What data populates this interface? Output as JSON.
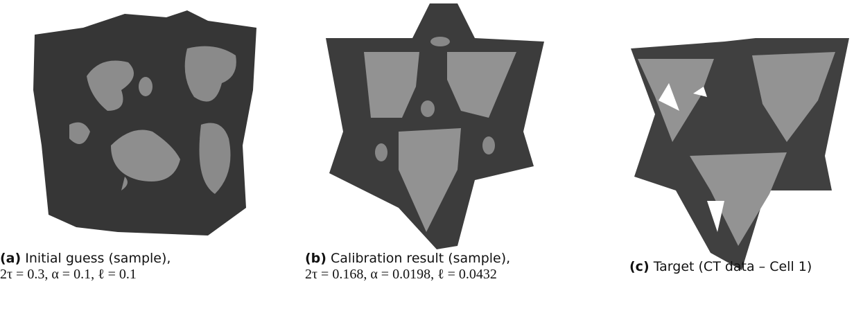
{
  "figures": [
    {
      "label": "(a)",
      "caption": "Initial guess (sample),",
      "params": "2τ = 0.3, α = 0.1, ℓ = 0.1"
    },
    {
      "label": "(b)",
      "caption": "Calibration result (sample),",
      "params": "2τ = 0.168, α = 0.0198, ℓ = 0.0432"
    },
    {
      "label": "(c)",
      "caption": "Target (CT data – Cell 1)"
    }
  ]
}
